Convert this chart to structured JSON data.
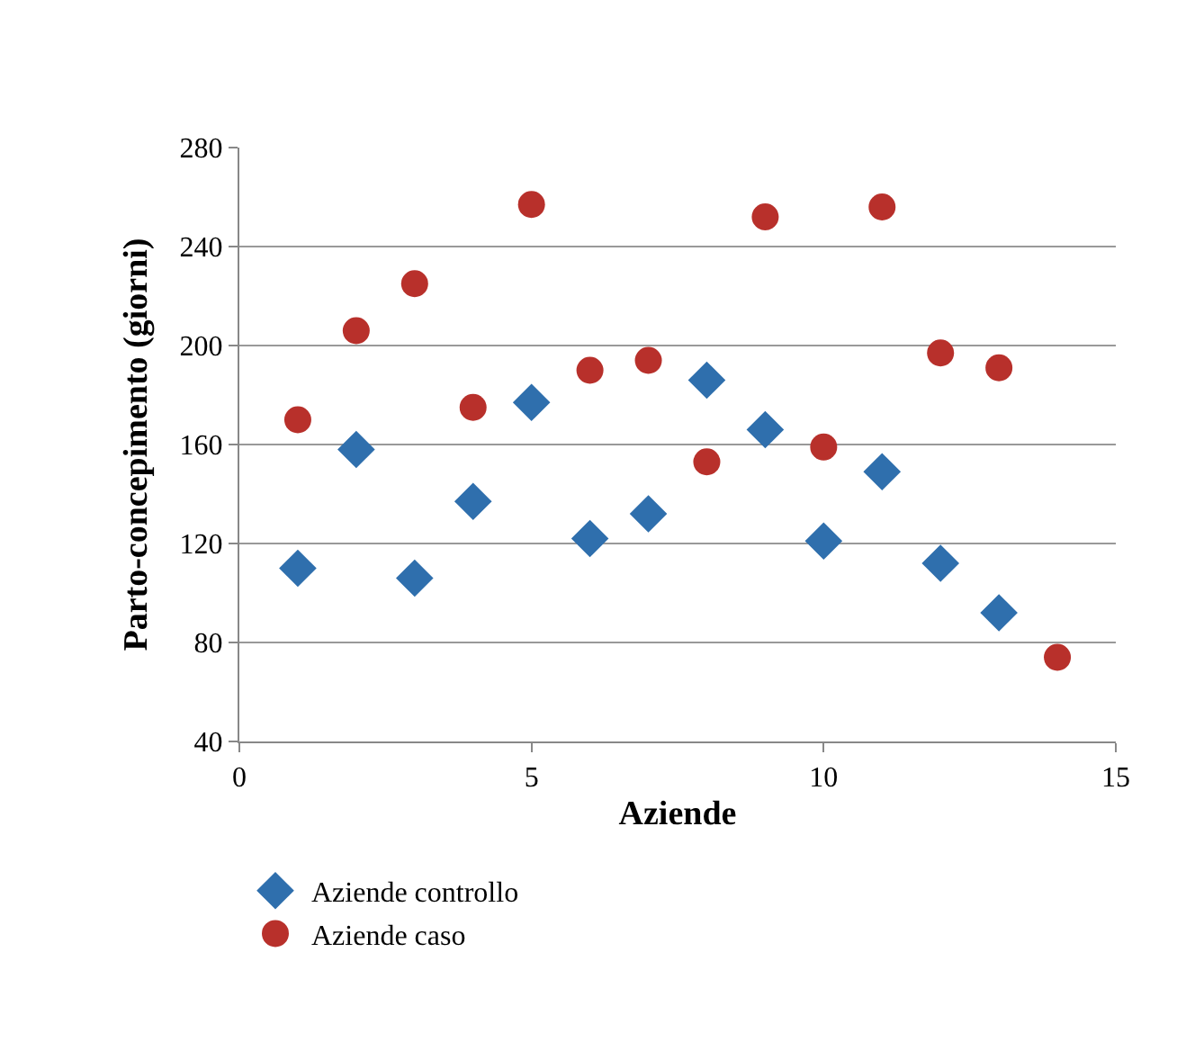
{
  "chart_data": {
    "type": "scatter",
    "xlabel": "Aziende",
    "ylabel": "Parto-concepimento (giorni)",
    "x": [
      1,
      2,
      3,
      4,
      5,
      6,
      7,
      8,
      9,
      10,
      11,
      12,
      13,
      14
    ],
    "series": [
      {
        "name": "Aziende controllo",
        "color": "#2f6fad",
        "marker": "diamond",
        "values": [
          110,
          158,
          106,
          137,
          177,
          122,
          132,
          186,
          166,
          121,
          149,
          112,
          92,
          null
        ]
      },
      {
        "name": "Aziende caso",
        "color": "#b8302b",
        "marker": "circle",
        "values": [
          170,
          206,
          225,
          175,
          257,
          190,
          194,
          153,
          252,
          159,
          256,
          197,
          191,
          74
        ]
      }
    ],
    "xlim": [
      0,
      15
    ],
    "xticks": [
      0,
      5,
      10,
      15
    ],
    "ylim": [
      40,
      280
    ],
    "yticks": [
      40,
      80,
      120,
      160,
      200,
      240,
      280
    ],
    "grid": "y",
    "legend": "bottom left"
  }
}
